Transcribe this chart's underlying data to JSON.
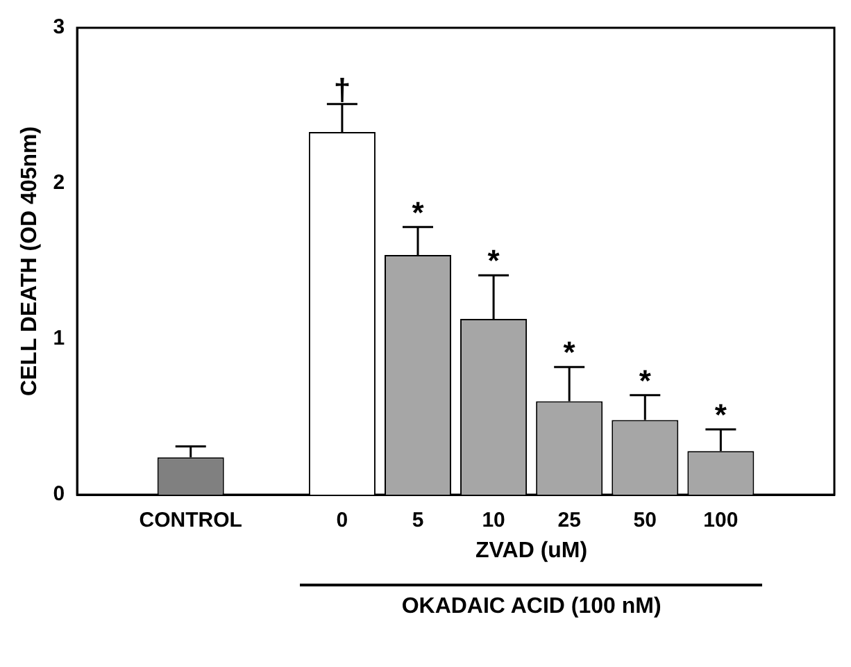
{
  "chart_data": {
    "type": "bar",
    "ylabel": "CELL DEATH (OD 405nm)",
    "xlabel": "ZVAD (uM)",
    "categories": [
      null,
      "CONTROL",
      null,
      "0",
      "5",
      "10",
      "25",
      "50",
      "100",
      null
    ],
    "values": [
      null,
      0.24,
      null,
      2.33,
      1.54,
      1.13,
      0.6,
      0.48,
      0.28,
      null
    ],
    "colors": [
      "#ffffff",
      "#808080",
      "#ffffff",
      "#ffffff",
      "#a6a6a6",
      "#a6a6a6",
      "#a6a6a6",
      "#a6a6a6",
      "#a6a6a6",
      "#ffffff"
    ],
    "errors": [
      null,
      [
        0.24,
        0.31
      ],
      null,
      [
        2.33,
        2.51
      ],
      [
        1.54,
        1.72
      ],
      [
        1.13,
        1.41
      ],
      [
        0.6,
        0.82
      ],
      [
        0.48,
        0.64
      ],
      [
        0.28,
        0.42
      ],
      null
    ],
    "ylim": [
      0,
      3
    ],
    "yticks": [
      0,
      1,
      2,
      3
    ],
    "grid": false,
    "legend": false,
    "annotations": [
      {
        "text": "†",
        "x": "0",
        "y": 2.51
      },
      {
        "text": "*",
        "x": "5",
        "y": 1.72
      },
      {
        "text": "*",
        "x": "10",
        "y": 1.41
      },
      {
        "text": "*",
        "x": "25",
        "y": 0.82
      },
      {
        "text": "*",
        "x": "50",
        "y": 0.64
      },
      {
        "text": "*",
        "x": "100",
        "y": 0.42
      },
      "OKADAIC ACID (100 nM)"
    ]
  }
}
